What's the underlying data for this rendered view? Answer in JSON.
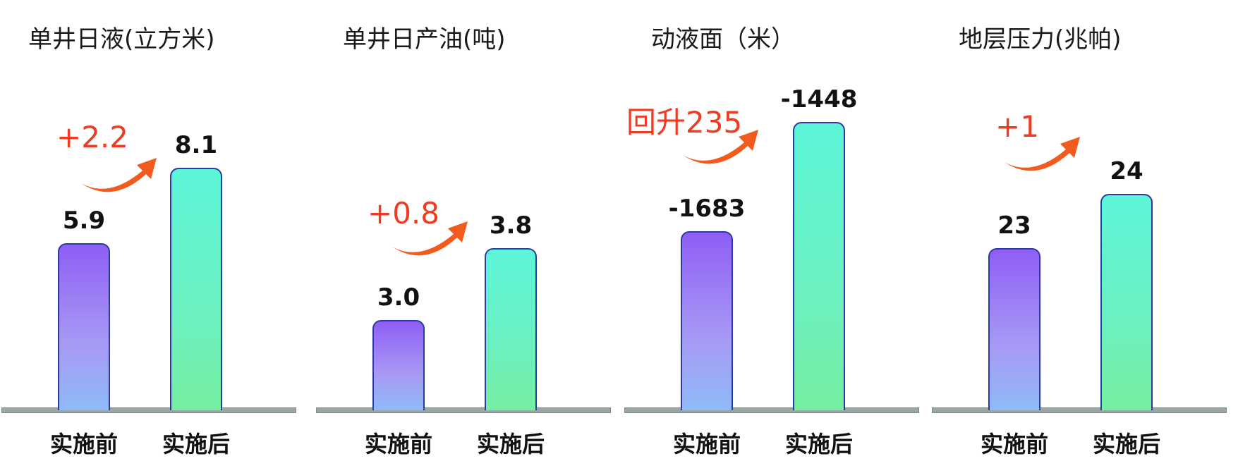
{
  "chart_data": [
    {
      "type": "bar",
      "title": "单井日液(立方米)",
      "categories": [
        "实施前",
        "实施后"
      ],
      "values": [
        5.9,
        8.1
      ],
      "value_labels": [
        "5.9",
        "8.1"
      ],
      "annotation": "+2.2",
      "ylim": [
        1,
        10.5
      ]
    },
    {
      "type": "bar",
      "title": "单井日产油(吨)",
      "categories": [
        "实施前",
        "实施后"
      ],
      "values": [
        3.0,
        3.8
      ],
      "value_labels": [
        "3.0",
        "3.8"
      ],
      "annotation": "+0.8",
      "ylim": [
        2,
        5.6
      ]
    },
    {
      "type": "bar",
      "title": "动液面（米）",
      "categories": [
        "实施前",
        "实施后"
      ],
      "values": [
        -1683,
        -1448
      ],
      "value_labels": [
        "-1683",
        "-1448"
      ],
      "annotation": "回升235",
      "ylim": [
        -2070,
        -1370
      ]
    },
    {
      "type": "bar",
      "title": "地层压力(兆帕)",
      "categories": [
        "实施前",
        "实施后"
      ],
      "values": [
        23,
        24
      ],
      "value_labels": [
        "23",
        "24"
      ],
      "annotation": "+1",
      "ylim": [
        20,
        26
      ]
    }
  ],
  "colors": {
    "before_top": "#8f5ef5",
    "before_bottom": "#8fbaf8",
    "after_top": "#5cf5d8",
    "after_bottom": "#74eea0",
    "annotation": "#ee3b22",
    "axis": "#9aa6a6"
  },
  "icons": {
    "arrow": "curved-arrow-up-right"
  }
}
